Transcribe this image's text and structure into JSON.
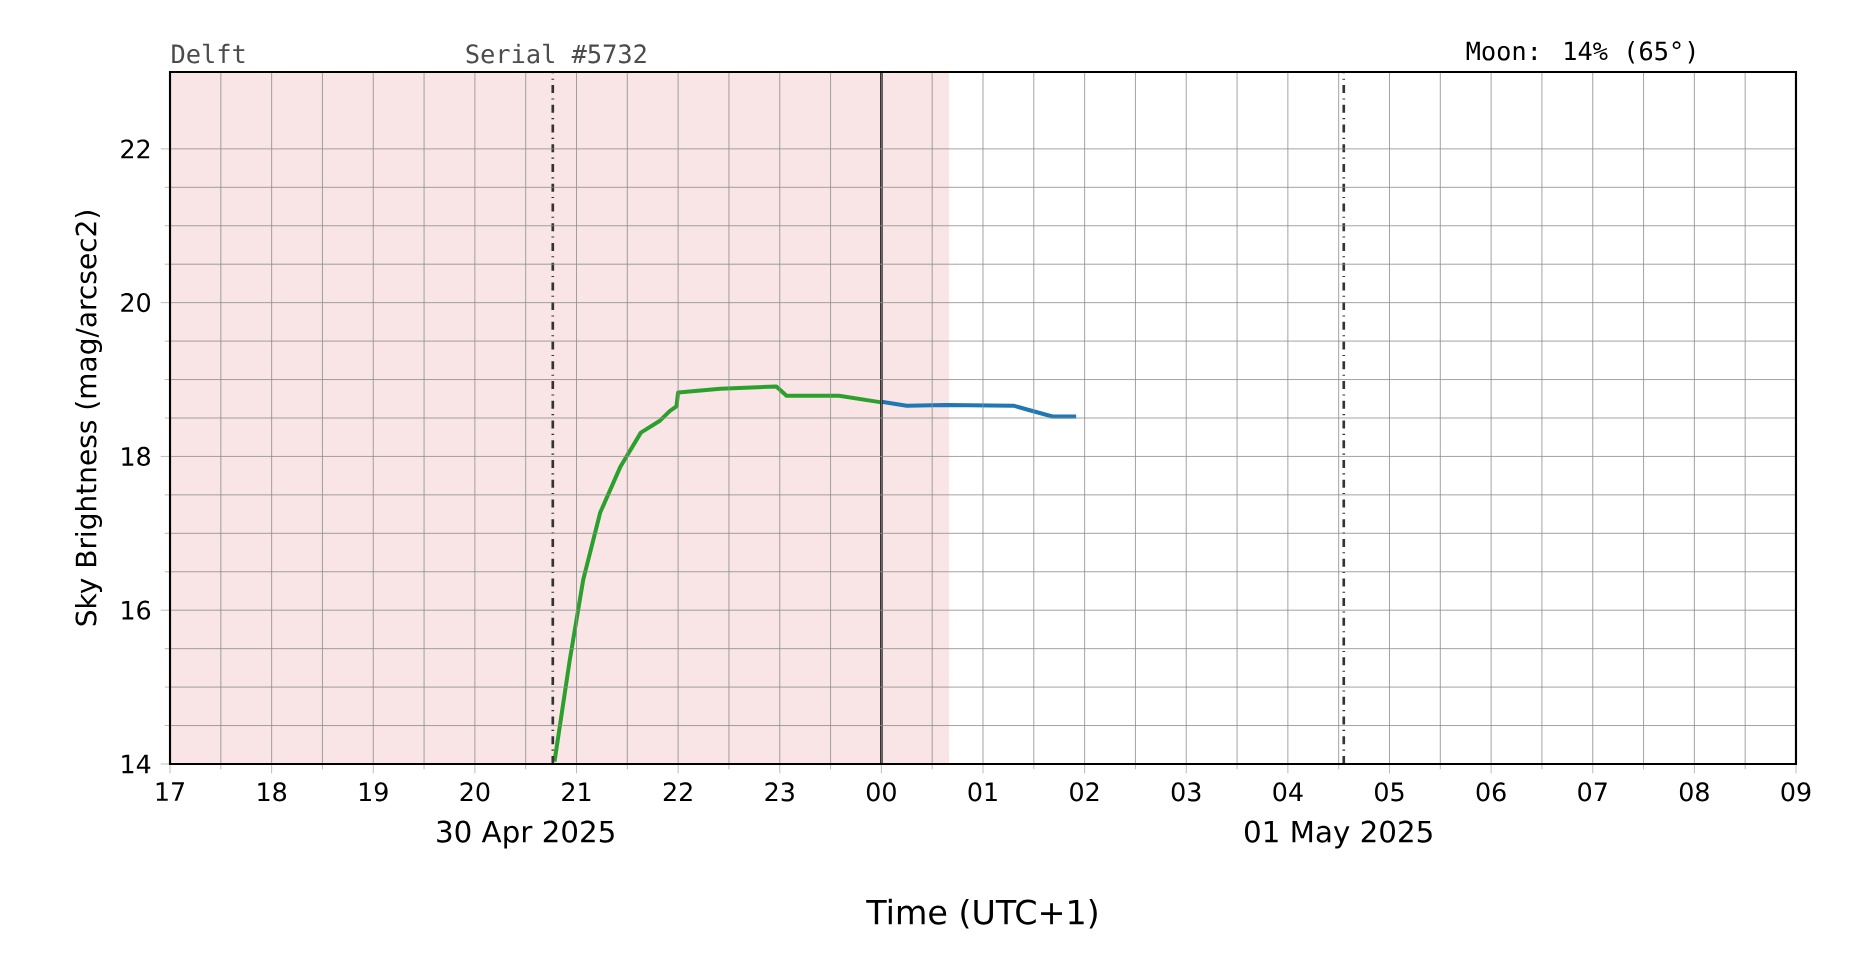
{
  "chart_data": {
    "type": "line",
    "xlabel": "Time (UTC+1)",
    "ylabel": "Sky Brightness (mag/arcsec2)",
    "annotations": [
      "Delft",
      "Serial #5732",
      "Moon: 14% (65°)",
      "30 Apr 2025",
      "01 May 2025"
    ],
    "series": [
      {
        "color": "#2ca02c",
        "x": [
          "2025-04-30T20:47",
          "2025-04-30T20:56",
          "2025-04-30T21:04",
          "2025-04-30T21:14",
          "2025-04-30T21:26",
          "2025-04-30T21:38",
          "2025-04-30T21:49",
          "2025-04-30T21:55",
          "2025-04-30T21:59",
          "2025-04-30T22:00",
          "2025-04-30T22:25",
          "2025-04-30T22:58",
          "2025-04-30T23:04",
          "2025-04-30T23:35",
          "2025-05-01T00:01"
        ],
        "values": [
          14.03,
          15.35,
          16.4,
          17.27,
          17.87,
          18.31,
          18.46,
          18.59,
          18.65,
          18.83,
          18.88,
          18.91,
          18.79,
          18.79,
          18.7
        ]
      },
      {
        "color": "#1f77b4",
        "x": [
          "2025-05-01T00:00",
          "2025-05-01T00:15",
          "2025-05-01T00:38",
          "2025-05-01T01:18",
          "2025-05-01T01:26",
          "2025-05-01T01:41",
          "2025-05-01T01:55"
        ],
        "values": [
          18.71,
          18.66,
          18.67,
          18.66,
          18.61,
          18.52,
          18.52
        ]
      }
    ],
    "xlim": [
      "2025-04-30T17:00",
      "2025-05-01T09:00"
    ],
    "ylim": [
      14,
      23
    ],
    "xticks": [
      {
        "value": "2025-04-30T17:00",
        "label": "17"
      },
      {
        "value": "2025-04-30T18:00",
        "label": "18"
      },
      {
        "value": "2025-04-30T19:00",
        "label": "19"
      },
      {
        "value": "2025-04-30T20:00",
        "label": "20"
      },
      {
        "value": "2025-04-30T21:00",
        "label": "21"
      },
      {
        "value": "2025-04-30T22:00",
        "label": "22"
      },
      {
        "value": "2025-04-30T23:00",
        "label": "23"
      },
      {
        "value": "2025-05-01T00:00",
        "label": "00"
      },
      {
        "value": "2025-05-01T01:00",
        "label": "01"
      },
      {
        "value": "2025-05-01T02:00",
        "label": "02"
      },
      {
        "value": "2025-05-01T03:00",
        "label": "03"
      },
      {
        "value": "2025-05-01T04:00",
        "label": "04"
      },
      {
        "value": "2025-05-01T05:00",
        "label": "05"
      },
      {
        "value": "2025-05-01T06:00",
        "label": "06"
      },
      {
        "value": "2025-05-01T07:00",
        "label": "07"
      },
      {
        "value": "2025-05-01T08:00",
        "label": "08"
      },
      {
        "value": "2025-05-01T09:00",
        "label": "09"
      }
    ],
    "yticks": [
      14,
      16,
      18,
      20,
      22
    ],
    "ref_lines": [
      {
        "axis": "x",
        "value": "2025-04-30T20:46",
        "line_style": "dashdot",
        "color": "#333333"
      },
      {
        "axis": "x",
        "value": "2025-05-01T00:00",
        "line_style": "solid",
        "color": "#222222"
      },
      {
        "axis": "x",
        "value": "2025-05-01T04:33",
        "line_style": "dashdot",
        "color": "#333333"
      }
    ],
    "bands": [
      {
        "axis": "x",
        "from": "2025-04-30T17:00",
        "to": "2025-05-01T00:40",
        "color": "#f9e5e5"
      }
    ],
    "grid": true,
    "marker": "none",
    "line_style": "solid"
  }
}
